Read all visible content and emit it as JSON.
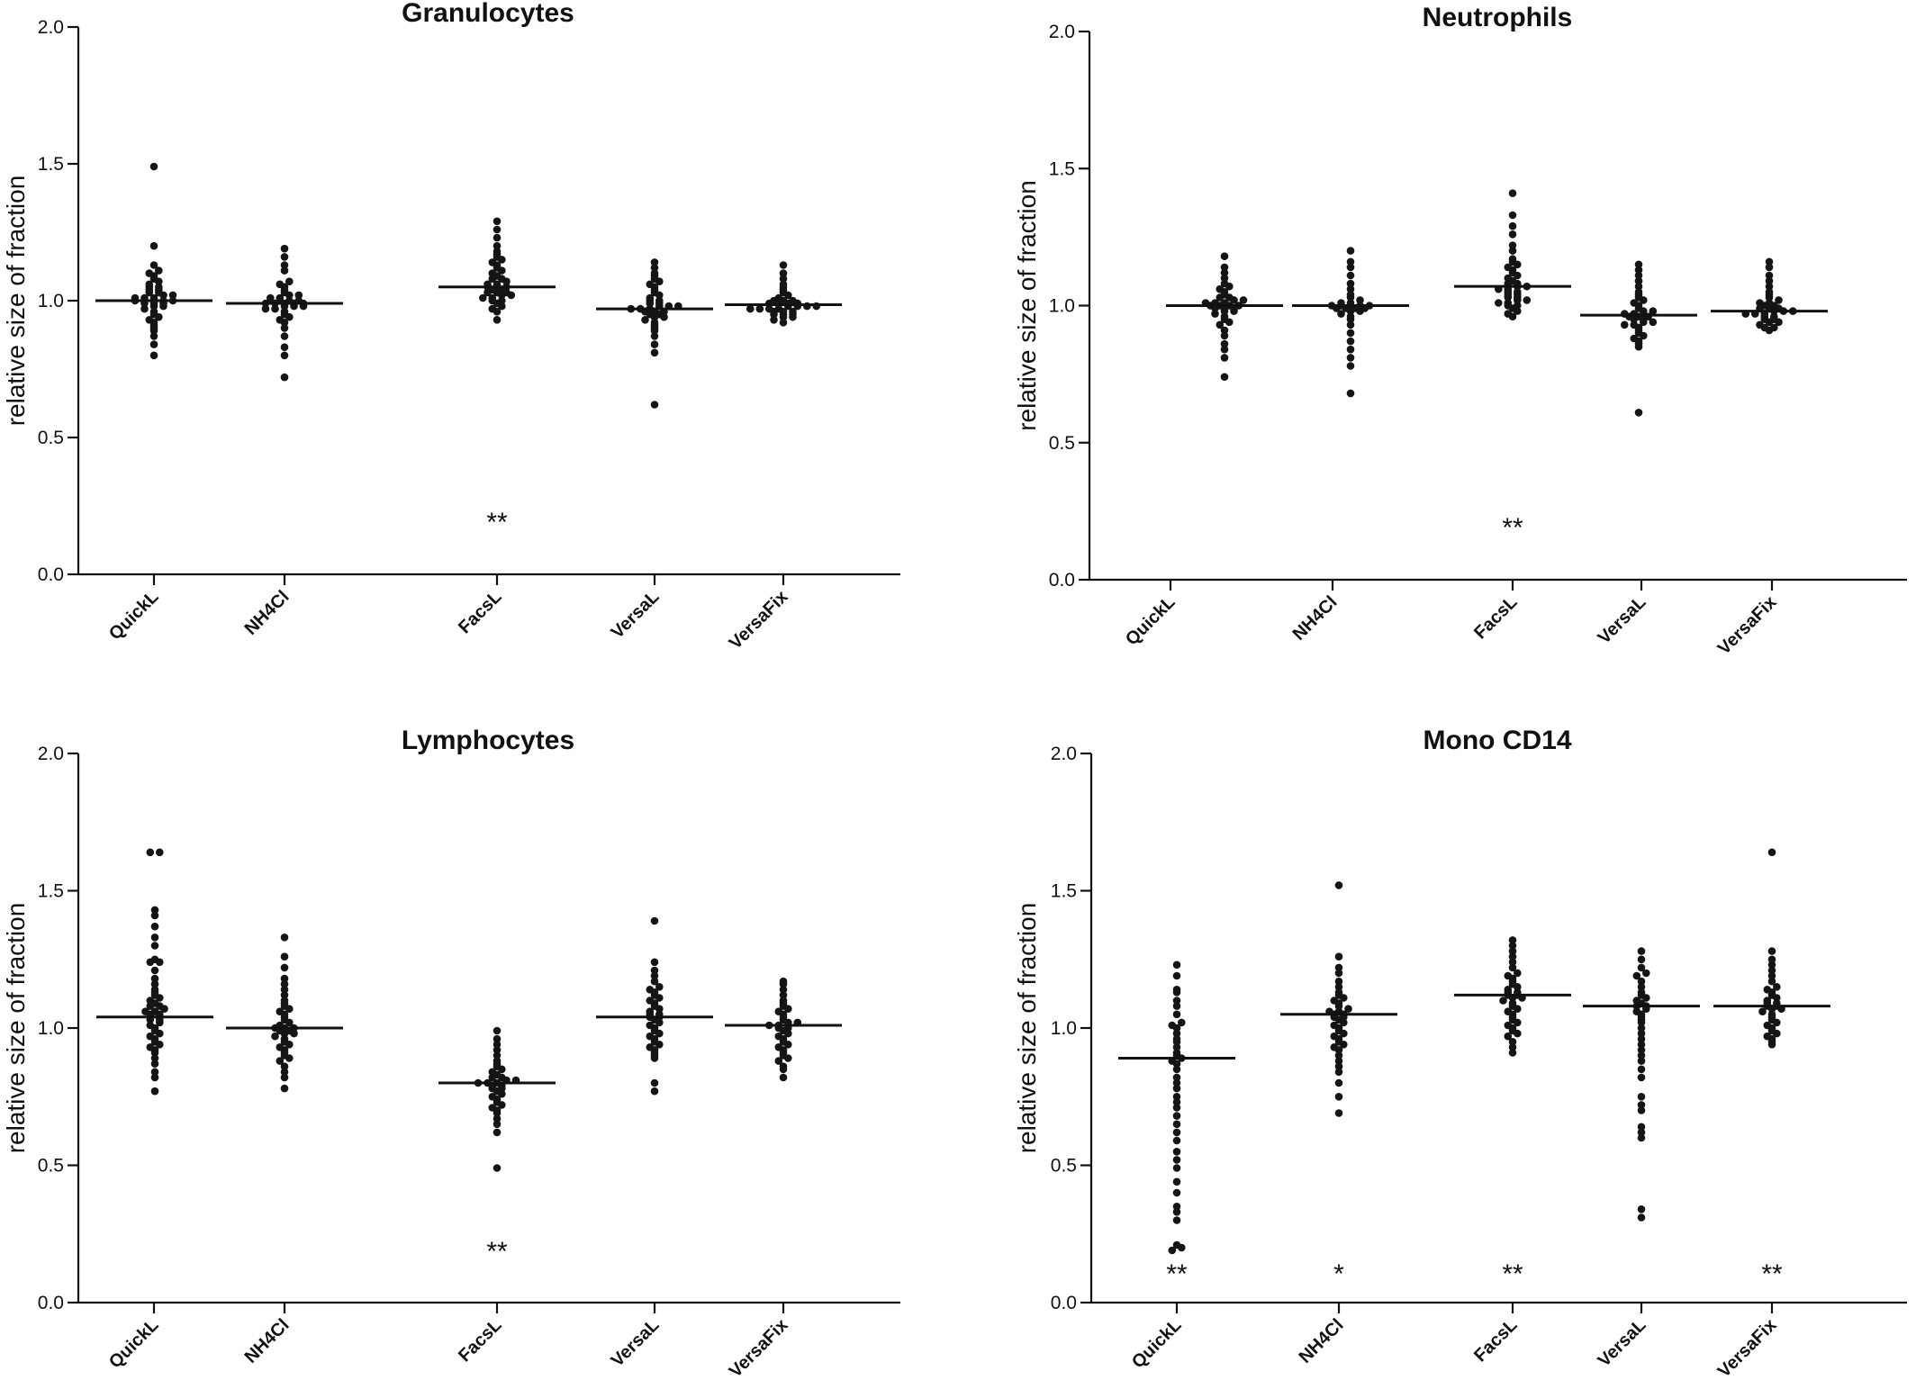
{
  "chart_data": [
    {
      "type": "scatter",
      "title": "Granulocytes",
      "ylabel": "relative size of fraction",
      "ylim": [
        0,
        2
      ],
      "yticks": [
        "0.0",
        "0.5",
        "1.0",
        "1.5",
        "2.0"
      ],
      "categories": [
        "QuickL",
        "NH4Cl",
        "FacsL",
        "VersaL",
        "VersaFix"
      ],
      "means": [
        1.0,
        0.99,
        1.05,
        0.97,
        0.985
      ],
      "significance": [
        "",
        "",
        "**",
        "",
        ""
      ],
      "points": [
        [
          1.49,
          1.2,
          1.13,
          1.11,
          1.1,
          1.09,
          1.08,
          1.07,
          1.06,
          1.05,
          1.05,
          1.04,
          1.04,
          1.03,
          1.03,
          1.02,
          1.02,
          1.01,
          1.01,
          1.01,
          1.0,
          1.0,
          1.0,
          1.0,
          1.0,
          0.99,
          0.99,
          0.99,
          0.98,
          0.98,
          0.97,
          0.96,
          0.95,
          0.94,
          0.93,
          0.92,
          0.91,
          0.9,
          0.89,
          0.87,
          0.84,
          0.8
        ],
        [
          1.19,
          1.16,
          1.13,
          1.11,
          1.07,
          1.06,
          1.05,
          1.04,
          1.03,
          1.02,
          1.02,
          1.01,
          1.01,
          1.0,
          1.0,
          1.0,
          1.0,
          0.99,
          0.99,
          0.99,
          0.99,
          0.99,
          0.98,
          0.98,
          0.98,
          0.97,
          0.97,
          0.96,
          0.95,
          0.94,
          0.93,
          0.92,
          0.9,
          0.87,
          0.83,
          0.8,
          0.72
        ],
        [
          1.29,
          1.26,
          1.23,
          1.2,
          1.18,
          1.17,
          1.16,
          1.15,
          1.14,
          1.13,
          1.12,
          1.11,
          1.1,
          1.09,
          1.08,
          1.08,
          1.07,
          1.06,
          1.06,
          1.05,
          1.05,
          1.05,
          1.04,
          1.04,
          1.03,
          1.03,
          1.03,
          1.02,
          1.02,
          1.01,
          1.01,
          1.0,
          1.0,
          0.99,
          0.98,
          0.97,
          0.96,
          0.93
        ],
        [
          1.14,
          1.12,
          1.1,
          1.09,
          1.08,
          1.07,
          1.06,
          1.05,
          1.04,
          1.03,
          1.02,
          1.01,
          1.0,
          1.0,
          0.99,
          0.99,
          0.98,
          0.98,
          0.98,
          0.97,
          0.97,
          0.97,
          0.96,
          0.96,
          0.96,
          0.95,
          0.95,
          0.94,
          0.94,
          0.93,
          0.92,
          0.91,
          0.9,
          0.89,
          0.87,
          0.84,
          0.81,
          0.62
        ],
        [
          1.13,
          1.1,
          1.08,
          1.06,
          1.05,
          1.04,
          1.03,
          1.02,
          1.01,
          1.0,
          1.0,
          1.0,
          0.99,
          0.99,
          0.99,
          0.99,
          0.98,
          0.98,
          0.98,
          0.98,
          0.97,
          0.97,
          0.97,
          0.97,
          0.96,
          0.96,
          0.96,
          0.95,
          0.95,
          0.95,
          0.94,
          0.94,
          0.93,
          0.92
        ]
      ]
    },
    {
      "type": "scatter",
      "title": "Neutrophils",
      "ylabel": "relative size of fraction",
      "ylim": [
        0,
        2
      ],
      "yticks": [
        "0.0",
        "0.5",
        "1.0",
        "1.5",
        "2.0"
      ],
      "categories": [
        "QuickL",
        "NH4Cl",
        "FacsL",
        "VersaL",
        "VersaFix"
      ],
      "means": [
        1.0,
        1.0,
        1.07,
        0.965,
        0.98
      ],
      "significance": [
        "",
        "",
        "**",
        "",
        ""
      ],
      "points": [
        [
          1.18,
          1.14,
          1.12,
          1.1,
          1.08,
          1.07,
          1.06,
          1.05,
          1.04,
          1.03,
          1.03,
          1.02,
          1.02,
          1.01,
          1.01,
          1.01,
          1.0,
          1.0,
          1.0,
          1.0,
          0.99,
          0.99,
          0.99,
          0.98,
          0.98,
          0.97,
          0.96,
          0.95,
          0.94,
          0.93,
          0.91,
          0.89,
          0.86,
          0.84,
          0.81,
          0.74
        ],
        [
          1.2,
          1.16,
          1.14,
          1.11,
          1.08,
          1.06,
          1.04,
          1.03,
          1.02,
          1.01,
          1.01,
          1.0,
          1.0,
          1.0,
          1.0,
          1.0,
          0.99,
          0.99,
          0.99,
          0.99,
          0.98,
          0.98,
          0.97,
          0.96,
          0.95,
          0.93,
          0.9,
          0.87,
          0.84,
          0.81,
          0.78,
          0.68
        ],
        [
          1.41,
          1.33,
          1.29,
          1.26,
          1.22,
          1.2,
          1.17,
          1.16,
          1.15,
          1.14,
          1.13,
          1.12,
          1.11,
          1.1,
          1.09,
          1.08,
          1.08,
          1.07,
          1.07,
          1.06,
          1.06,
          1.05,
          1.05,
          1.04,
          1.04,
          1.03,
          1.03,
          1.02,
          1.02,
          1.01,
          1.01,
          1.0,
          1.0,
          0.99,
          0.98,
          0.97,
          0.96
        ],
        [
          1.15,
          1.13,
          1.11,
          1.09,
          1.07,
          1.05,
          1.04,
          1.03,
          1.02,
          1.01,
          1.0,
          0.99,
          0.98,
          0.98,
          0.97,
          0.97,
          0.96,
          0.96,
          0.96,
          0.95,
          0.95,
          0.94,
          0.94,
          0.93,
          0.93,
          0.92,
          0.91,
          0.9,
          0.89,
          0.88,
          0.87,
          0.86,
          0.85,
          0.61
        ],
        [
          1.16,
          1.14,
          1.11,
          1.09,
          1.07,
          1.05,
          1.04,
          1.03,
          1.02,
          1.01,
          1.01,
          1.0,
          1.0,
          0.99,
          0.99,
          0.99,
          0.98,
          0.98,
          0.98,
          0.97,
          0.97,
          0.97,
          0.96,
          0.96,
          0.95,
          0.95,
          0.94,
          0.94,
          0.93,
          0.92,
          0.92,
          0.91
        ]
      ]
    },
    {
      "type": "scatter",
      "title": "Lymphocytes",
      "ylabel": "relative size of fraction",
      "ylim": [
        0,
        2
      ],
      "yticks": [
        "0.0",
        "0.5",
        "1.0",
        "1.5",
        "2.0"
      ],
      "categories": [
        "QuickL",
        "NH4Cl",
        "FacsL",
        "VersaL",
        "VersaFix"
      ],
      "means": [
        1.04,
        1.0,
        0.8,
        1.04,
        1.01
      ],
      "significance": [
        "",
        "",
        "**",
        "",
        ""
      ],
      "points": [
        [
          1.64,
          1.64,
          1.43,
          1.41,
          1.37,
          1.33,
          1.3,
          1.25,
          1.24,
          1.24,
          1.21,
          1.18,
          1.16,
          1.14,
          1.13,
          1.12,
          1.11,
          1.1,
          1.09,
          1.08,
          1.08,
          1.07,
          1.06,
          1.06,
          1.05,
          1.05,
          1.04,
          1.04,
          1.03,
          1.03,
          1.02,
          1.01,
          1.0,
          0.99,
          0.98,
          0.97,
          0.96,
          0.95,
          0.94,
          0.93,
          0.92,
          0.91,
          0.89,
          0.87,
          0.84,
          0.82,
          0.77
        ],
        [
          1.33,
          1.26,
          1.22,
          1.18,
          1.16,
          1.14,
          1.12,
          1.1,
          1.09,
          1.08,
          1.07,
          1.06,
          1.05,
          1.04,
          1.03,
          1.02,
          1.01,
          1.0,
          1.0,
          1.0,
          0.99,
          0.99,
          0.98,
          0.98,
          0.97,
          0.96,
          0.95,
          0.94,
          0.93,
          0.92,
          0.91,
          0.9,
          0.89,
          0.88,
          0.86,
          0.84,
          0.82,
          0.78
        ],
        [
          0.99,
          0.96,
          0.94,
          0.92,
          0.9,
          0.88,
          0.87,
          0.86,
          0.85,
          0.84,
          0.83,
          0.82,
          0.82,
          0.81,
          0.81,
          0.8,
          0.8,
          0.8,
          0.79,
          0.79,
          0.78,
          0.78,
          0.77,
          0.76,
          0.75,
          0.74,
          0.73,
          0.72,
          0.71,
          0.7,
          0.69,
          0.67,
          0.65,
          0.62,
          0.49
        ],
        [
          1.39,
          1.24,
          1.21,
          1.19,
          1.17,
          1.15,
          1.14,
          1.13,
          1.12,
          1.11,
          1.1,
          1.09,
          1.08,
          1.07,
          1.06,
          1.05,
          1.05,
          1.04,
          1.04,
          1.03,
          1.02,
          1.01,
          1.0,
          0.99,
          0.98,
          0.97,
          0.96,
          0.95,
          0.94,
          0.93,
          0.92,
          0.91,
          0.9,
          0.89,
          0.8,
          0.77
        ],
        [
          1.17,
          1.16,
          1.14,
          1.12,
          1.1,
          1.09,
          1.08,
          1.07,
          1.06,
          1.05,
          1.04,
          1.03,
          1.02,
          1.02,
          1.01,
          1.01,
          1.0,
          1.0,
          0.99,
          0.98,
          0.97,
          0.96,
          0.95,
          0.94,
          0.93,
          0.92,
          0.91,
          0.9,
          0.89,
          0.88,
          0.86,
          0.85,
          0.82
        ]
      ]
    },
    {
      "type": "scatter",
      "title": "Mono CD14",
      "ylabel": "relative size of fraction",
      "ylim": [
        0,
        2
      ],
      "yticks": [
        "0.0",
        "0.5",
        "1.0",
        "1.5",
        "2.0"
      ],
      "categories": [
        "QuickL",
        "NH4Cl",
        "FacsL",
        "VersaL",
        "VersaFix"
      ],
      "means": [
        0.89,
        1.05,
        1.12,
        1.08,
        1.08
      ],
      "significance": [
        "**",
        "*",
        "**",
        "",
        "**"
      ],
      "points": [
        [
          1.23,
          1.19,
          1.14,
          1.13,
          1.1,
          1.08,
          1.05,
          1.02,
          1.01,
          1.0,
          0.98,
          0.96,
          0.95,
          0.93,
          0.91,
          0.9,
          0.89,
          0.88,
          0.87,
          0.85,
          0.82,
          0.8,
          0.78,
          0.75,
          0.73,
          0.71,
          0.68,
          0.65,
          0.62,
          0.59,
          0.55,
          0.52,
          0.49,
          0.44,
          0.4,
          0.35,
          0.33,
          0.3,
          0.21,
          0.2,
          0.19
        ],
        [
          1.52,
          1.26,
          1.22,
          1.2,
          1.17,
          1.15,
          1.13,
          1.12,
          1.11,
          1.1,
          1.09,
          1.08,
          1.07,
          1.06,
          1.06,
          1.05,
          1.05,
          1.04,
          1.04,
          1.03,
          1.02,
          1.01,
          1.0,
          0.99,
          0.98,
          0.97,
          0.96,
          0.95,
          0.94,
          0.93,
          0.92,
          0.9,
          0.88,
          0.86,
          0.84,
          0.8,
          0.75,
          0.69
        ],
        [
          1.32,
          1.3,
          1.28,
          1.26,
          1.24,
          1.22,
          1.2,
          1.19,
          1.18,
          1.17,
          1.16,
          1.15,
          1.14,
          1.13,
          1.13,
          1.12,
          1.12,
          1.11,
          1.11,
          1.1,
          1.09,
          1.08,
          1.07,
          1.06,
          1.05,
          1.04,
          1.03,
          1.02,
          1.01,
          1.0,
          0.99,
          0.98,
          0.97,
          0.95,
          0.93,
          0.91
        ],
        [
          1.28,
          1.25,
          1.22,
          1.2,
          1.19,
          1.17,
          1.15,
          1.13,
          1.12,
          1.11,
          1.1,
          1.09,
          1.08,
          1.08,
          1.07,
          1.06,
          1.05,
          1.04,
          1.03,
          1.02,
          1.0,
          0.98,
          0.96,
          0.94,
          0.92,
          0.9,
          0.88,
          0.85,
          0.82,
          0.75,
          0.72,
          0.7,
          0.64,
          0.62,
          0.6,
          0.34,
          0.31
        ],
        [
          1.64,
          1.28,
          1.25,
          1.23,
          1.21,
          1.19,
          1.17,
          1.15,
          1.14,
          1.13,
          1.12,
          1.11,
          1.1,
          1.09,
          1.09,
          1.08,
          1.08,
          1.07,
          1.07,
          1.06,
          1.05,
          1.04,
          1.03,
          1.02,
          1.01,
          1.0,
          0.99,
          0.98,
          0.97,
          0.96,
          0.95,
          0.94
        ]
      ]
    }
  ]
}
